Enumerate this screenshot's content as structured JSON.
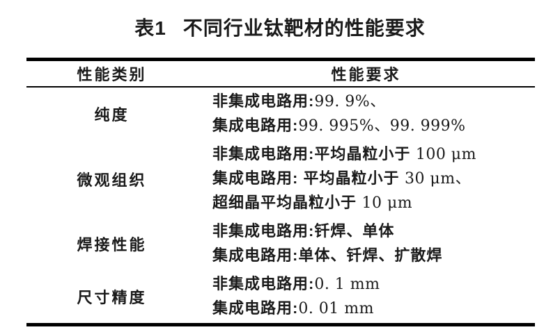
{
  "title": {
    "label": "表1",
    "text": "不同行业钛靶材的性能要求"
  },
  "table": {
    "headers": [
      "性能类别",
      "性能要求"
    ],
    "rows": [
      {
        "category": "纯度",
        "lines": [
          {
            "zh": "非集成电路用:",
            "num": "99. 9%、"
          },
          {
            "zh": "集成电路用:",
            "num": "99. 995%、99. 999%"
          }
        ]
      },
      {
        "category": "微观组织",
        "lines": [
          {
            "zh": "非集成电路用:平均晶粒小于",
            "num": " 100 μm"
          },
          {
            "zh": "集成电路用: 平均晶粒小于",
            "num": " 30 μm、"
          },
          {
            "zh": "超细晶平均晶粒小于",
            "num": " 10 μm"
          }
        ]
      },
      {
        "category": "焊接性能",
        "lines": [
          {
            "zh": "非集成电路用:钎焊、单体",
            "num": ""
          },
          {
            "zh": "集成电路用:单体、钎焊、扩散焊",
            "num": ""
          }
        ]
      },
      {
        "category": "尺寸精度",
        "lines": [
          {
            "zh": "非集成电路用:",
            "num": "0. 1 mm"
          },
          {
            "zh": "集成电路用:",
            "num": "0. 01 mm"
          }
        ]
      }
    ]
  },
  "colors": {
    "background": "#ffffff",
    "text": "#1a1a1a",
    "rule": "#000000"
  }
}
